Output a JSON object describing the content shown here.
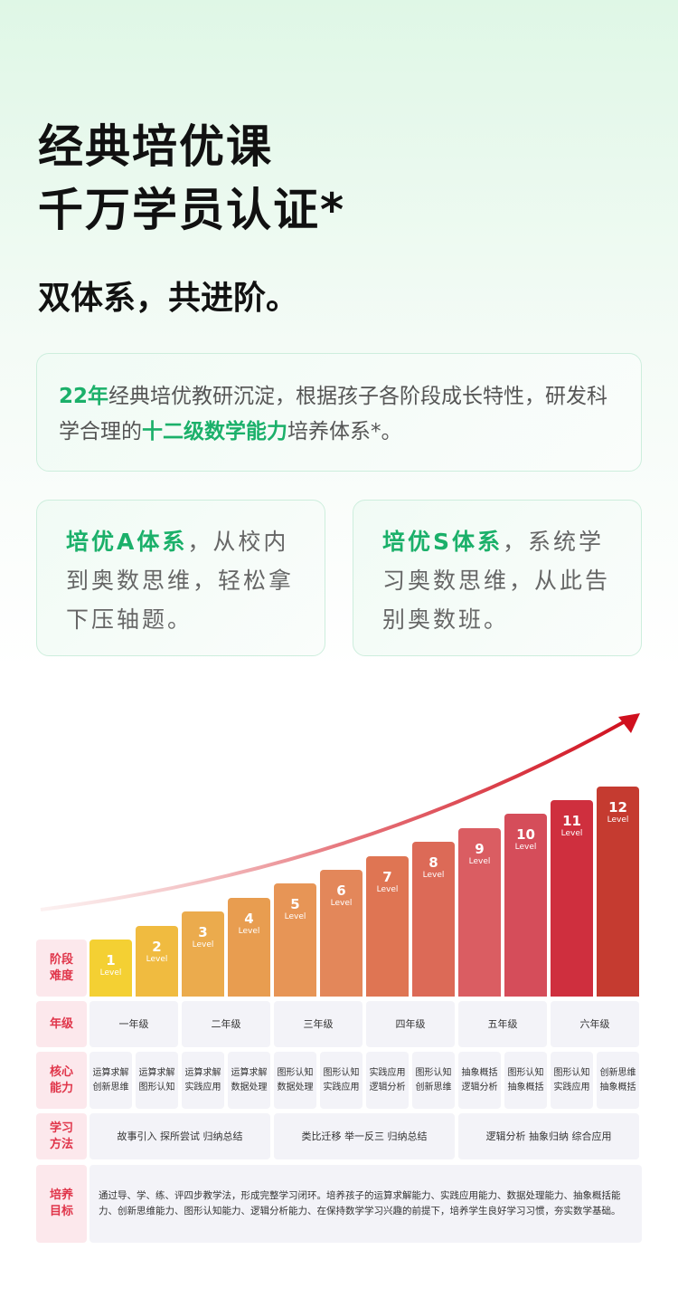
{
  "header": {
    "title_line1": "经典培优课",
    "title_line2": "千万学员认证*",
    "subtitle": "双体系，共进阶。"
  },
  "intro": {
    "highlight1": "22年",
    "text1": "经典培优教研沉淀，根据孩子各阶段成长特性，研发科学合理的",
    "highlight2": "十二级数学能力",
    "text2": "培养体系*。"
  },
  "cards": [
    {
      "highlight": "培优A体系",
      "text": "，从校内到奥数思维，轻松拿下压轴题。"
    },
    {
      "highlight": "培优S体系",
      "text": "，系统学习奥数思维，从此告别奥数班。"
    }
  ],
  "levels": {
    "numbers": [
      "1",
      "2",
      "3",
      "4",
      "5",
      "6",
      "7",
      "8",
      "9",
      "10",
      "11",
      "12"
    ],
    "unit": "Level"
  },
  "table": {
    "row_labels": [
      [
        "阶段",
        "难度"
      ],
      [
        "年级"
      ],
      [
        "核心",
        "能力"
      ],
      [
        "学习",
        "方法"
      ],
      [
        "培养",
        "目标"
      ]
    ],
    "grades": [
      "一年级",
      "二年级",
      "三年级",
      "四年级",
      "五年级",
      "六年级"
    ],
    "abilities": [
      [
        "运算求解",
        "创新思维"
      ],
      [
        "运算求解",
        "图形认知"
      ],
      [
        "运算求解",
        "实践应用"
      ],
      [
        "运算求解",
        "数据处理"
      ],
      [
        "图形认知",
        "数据处理"
      ],
      [
        "图形认知",
        "实践应用"
      ],
      [
        "实践应用",
        "逻辑分析"
      ],
      [
        "图形认知",
        "创新思维"
      ],
      [
        "抽象概括",
        "逻辑分析"
      ],
      [
        "图形认知",
        "抽象概括"
      ],
      [
        "图形认知",
        "实践应用"
      ],
      [
        "创新思维",
        "抽象概括"
      ]
    ],
    "methods": [
      "故事引入 探所尝试 归纳总结",
      "类比迁移 举一反三 归纳总结",
      "逻辑分析 抽象归纳 综合应用"
    ],
    "goal": "通过导、学、练、评四步教学法，形成完整学习闭环。培养孩子的运算求解能力、实践应用能力、数据处理能力、抽象概括能力、创新思维能力、图形认知能力、逻辑分析能力、在保持数学学习兴趣的前提下，培养学生良好学习习惯，夯实数学基础。"
  }
}
